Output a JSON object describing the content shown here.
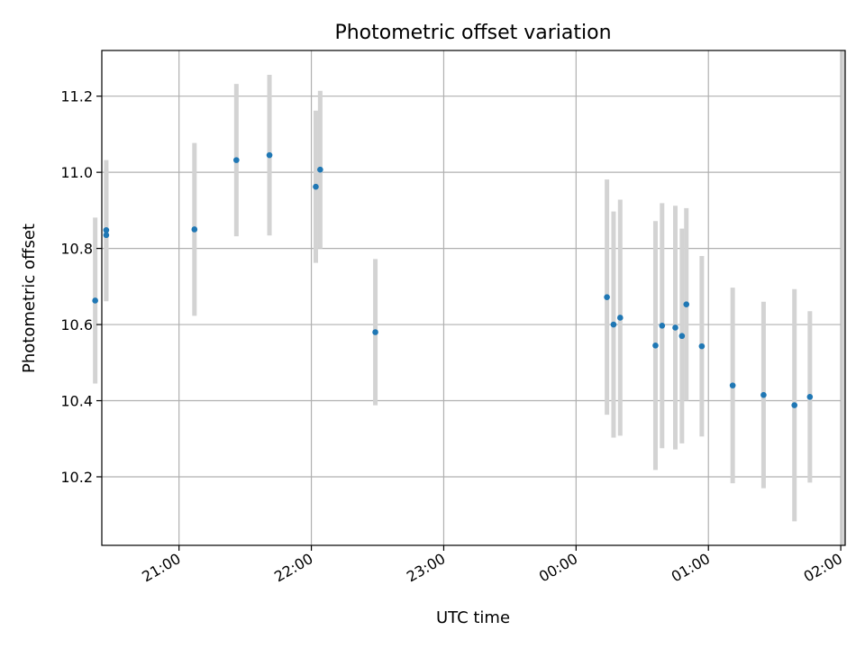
{
  "chart_data": {
    "type": "scatter",
    "title": "Photometric offset variation",
    "xlabel": "UTC time",
    "ylabel": "Photometric offset",
    "x_unit": "datetime",
    "xlim": [
      "20:25",
      "02:02"
    ],
    "ylim": [
      10.02,
      11.32
    ],
    "grid": true,
    "x_ticks": [
      "21:00",
      "22:00",
      "23:00",
      "00:00",
      "01:00",
      "02:00"
    ],
    "y_ticks": [
      "10.2",
      "10.4",
      "10.6",
      "10.8",
      "11.0",
      "11.2"
    ],
    "marker_color": "#1f77b4",
    "errorbar_color": "#d3d3d3",
    "points": [
      {
        "t": "20:22",
        "y": 10.663,
        "err": 0.218
      },
      {
        "t": "20:27",
        "y": 10.848,
        "err": 0.184
      },
      {
        "t": "20:27",
        "y": 10.835,
        "err": 0.174
      },
      {
        "t": "21:07",
        "y": 10.85,
        "err": 0.227
      },
      {
        "t": "21:26",
        "y": 11.032,
        "err": 0.2
      },
      {
        "t": "21:41",
        "y": 11.045,
        "err": 0.211
      },
      {
        "t": "22:02",
        "y": 10.962,
        "err": 0.2
      },
      {
        "t": "22:04",
        "y": 11.007,
        "err": 0.207
      },
      {
        "t": "22:29",
        "y": 10.58,
        "err": 0.192
      },
      {
        "t": "00:14",
        "y": 10.672,
        "err": 0.309
      },
      {
        "t": "00:17",
        "y": 10.6,
        "err": 0.297
      },
      {
        "t": "00:20",
        "y": 10.618,
        "err": 0.31
      },
      {
        "t": "00:36",
        "y": 10.545,
        "err": 0.327
      },
      {
        "t": "00:39",
        "y": 10.597,
        "err": 0.322
      },
      {
        "t": "00:45",
        "y": 10.592,
        "err": 0.32
      },
      {
        "t": "00:48",
        "y": 10.57,
        "err": 0.282
      },
      {
        "t": "00:50",
        "y": 10.653,
        "err": 0.253
      },
      {
        "t": "00:57",
        "y": 10.543,
        "err": 0.237
      },
      {
        "t": "01:11",
        "y": 10.44,
        "err": 0.257
      },
      {
        "t": "01:25",
        "y": 10.415,
        "err": 0.245
      },
      {
        "t": "01:39",
        "y": 10.388,
        "err": 0.305
      },
      {
        "t": "01:46",
        "y": 10.41,
        "err": 0.225
      }
    ],
    "edge_bar": {
      "t": "02:02",
      "low": 10.02,
      "high": 11.32
    }
  }
}
